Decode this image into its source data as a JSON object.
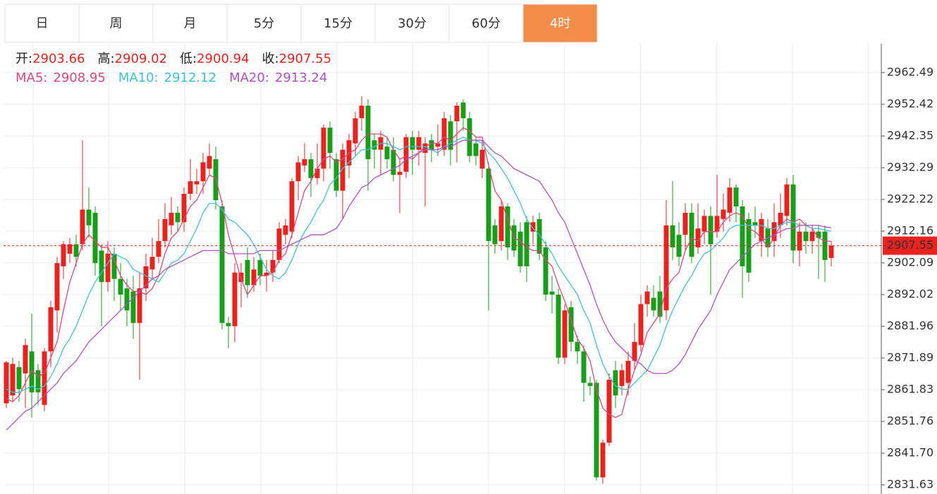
{
  "tabs": [
    "日",
    "周",
    "月",
    "5分",
    "15分",
    "30分",
    "60分",
    "4时"
  ],
  "active_tab": 7,
  "chart_data": {
    "type": "candlestick",
    "ohlc_labels": [
      "开:",
      "高:",
      "低:",
      "收:"
    ],
    "up_color": "#e8221e",
    "down_color": "#1a9e1a",
    "grid": true,
    "ylim": [
      2828.72,
      2971.66
    ],
    "yticks": [
      {
        "value": 2831.63,
        "label": "2831.63"
      },
      {
        "value": 2841.7,
        "label": "2841.70"
      },
      {
        "value": 2851.76,
        "label": "2851.76"
      },
      {
        "value": 2861.83,
        "label": "2861.83"
      },
      {
        "value": 2871.89,
        "label": "2871.89"
      },
      {
        "value": 2881.96,
        "label": "2881.96"
      },
      {
        "value": 2892.02,
        "label": "2892.02"
      },
      {
        "value": 2902.09,
        "label": "2902.09"
      },
      {
        "value": 2912.16,
        "label": "2912.16"
      },
      {
        "value": 2922.22,
        "label": "2922.22"
      },
      {
        "value": 2932.29,
        "label": "2932.29"
      },
      {
        "value": 2942.35,
        "label": "2942.35"
      },
      {
        "value": 2952.42,
        "label": "2952.42"
      },
      {
        "value": 2962.49,
        "label": "2962.49"
      }
    ],
    "candles": [
      [
        2857.5,
        2871,
        2856,
        2870.5
      ],
      [
        2860,
        2872,
        2858,
        2870
      ],
      [
        2869,
        2871,
        2858,
        2862
      ],
      [
        2867,
        2878,
        2856,
        2876
      ],
      [
        2874,
        2886,
        2853,
        2861
      ],
      [
        2868,
        2870,
        2857,
        2861
      ],
      [
        2857,
        2875,
        2855,
        2874
      ],
      [
        2874,
        2890,
        2869,
        2888
      ],
      [
        2887,
        2904,
        2880,
        2902
      ],
      [
        2901,
        2909,
        2897,
        2908
      ],
      [
        2905,
        2910,
        2902,
        2908
      ],
      [
        2908,
        2911,
        2901,
        2904
      ],
      [
        2908,
        2941,
        2906,
        2919
      ],
      [
        2919,
        2926,
        2910,
        2914
      ],
      [
        2918,
        2920,
        2898,
        2902
      ],
      [
        2906,
        2908,
        2882,
        2896
      ],
      [
        2896,
        2909,
        2893,
        2905
      ],
      [
        2905,
        2907,
        2890,
        2897
      ],
      [
        2897,
        2902,
        2887,
        2892
      ],
      [
        2894,
        2897,
        2882,
        2887
      ],
      [
        2893,
        2898,
        2878,
        2883
      ],
      [
        2883,
        2899,
        2865,
        2894
      ],
      [
        2894,
        2905,
        2890,
        2901
      ],
      [
        2900,
        2910,
        2897,
        2904
      ],
      [
        2904,
        2916,
        2902,
        2909
      ],
      [
        2909,
        2921,
        2907,
        2916
      ],
      [
        2914,
        2923,
        2911,
        2918
      ],
      [
        2918,
        2920,
        2912,
        2915
      ],
      [
        2915,
        2926,
        2912,
        2924
      ],
      [
        2924,
        2935,
        2922,
        2928
      ],
      [
        2927,
        2932,
        2924,
        2928
      ],
      [
        2928,
        2937,
        2924,
        2934
      ],
      [
        2932,
        2940,
        2930,
        2936
      ],
      [
        2935,
        2939,
        2919,
        2922
      ],
      [
        2920,
        2922,
        2881,
        2883
      ],
      [
        2883,
        2885,
        2875,
        2882
      ],
      [
        2882,
        2902,
        2877,
        2899
      ],
      [
        2896,
        2902,
        2888,
        2899
      ],
      [
        2903,
        2907,
        2891,
        2895
      ],
      [
        2895,
        2904,
        2893,
        2900
      ],
      [
        2903,
        2905,
        2895,
        2898
      ],
      [
        2898,
        2903,
        2893,
        2899
      ],
      [
        2899,
        2906,
        2896,
        2903
      ],
      [
        2903,
        2915,
        2902,
        2913
      ],
      [
        2911,
        2916,
        2908,
        2914
      ],
      [
        2912,
        2929,
        2910,
        2928
      ],
      [
        2928,
        2936,
        2922,
        2934
      ],
      [
        2933,
        2940,
        2931,
        2935
      ],
      [
        2935,
        2937,
        2923,
        2929
      ],
      [
        2929,
        2940,
        2927,
        2932
      ],
      [
        2932,
        2946,
        2928,
        2945
      ],
      [
        2945,
        2947,
        2932,
        2937
      ],
      [
        2935,
        2937,
        2923,
        2925
      ],
      [
        2925,
        2940,
        2916,
        2938
      ],
      [
        2933,
        2943,
        2929,
        2941
      ],
      [
        2940,
        2950,
        2936,
        2948
      ],
      [
        2948,
        2955,
        2944,
        2952
      ],
      [
        2952,
        2954,
        2925,
        2935
      ],
      [
        2941,
        2943,
        2932,
        2938
      ],
      [
        2938,
        2944,
        2930,
        2942
      ],
      [
        2939,
        2942,
        2932,
        2935
      ],
      [
        2938,
        2942,
        2928,
        2930
      ],
      [
        2930,
        2935,
        2918,
        2931
      ],
      [
        2931,
        2943,
        2929,
        2942
      ],
      [
        2942,
        2944,
        2930,
        2938
      ],
      [
        2938,
        2944,
        2933,
        2942
      ],
      [
        2937,
        2942,
        2920,
        2940
      ],
      [
        2941,
        2943,
        2934,
        2938
      ],
      [
        2939,
        2946,
        2936,
        2940
      ],
      [
        2938,
        2950,
        2936,
        2948
      ],
      [
        2947,
        2949,
        2933,
        2938
      ],
      [
        2947,
        2953,
        2934,
        2952
      ],
      [
        2953,
        2954,
        2944,
        2948
      ],
      [
        2948,
        2950,
        2934,
        2936
      ],
      [
        2940,
        2942,
        2933,
        2936
      ],
      [
        2932,
        2941,
        2929,
        2938
      ],
      [
        2932,
        2934,
        2887,
        2909
      ],
      [
        2914,
        2916,
        2905,
        2908
      ],
      [
        2909,
        2922,
        2906,
        2920
      ],
      [
        2920,
        2921,
        2903,
        2907
      ],
      [
        2914,
        2916,
        2904,
        2906
      ],
      [
        2912,
        2915,
        2899,
        2901
      ],
      [
        2915,
        2917,
        2896,
        2901
      ],
      [
        2912,
        2917,
        2908,
        2915
      ],
      [
        2916,
        2918,
        2903,
        2905
      ],
      [
        2907,
        2909,
        2890,
        2892
      ],
      [
        2893,
        2898,
        2886,
        2892
      ],
      [
        2892,
        2894,
        2870,
        2872
      ],
      [
        2872,
        2889,
        2870,
        2887
      ],
      [
        2888,
        2890,
        2874,
        2877
      ],
      [
        2877,
        2879,
        2870,
        2874
      ],
      [
        2874,
        2876,
        2858,
        2864
      ],
      [
        2864,
        2866,
        2860,
        2863
      ],
      [
        2864,
        2865,
        2833,
        2834
      ],
      [
        2834,
        2846,
        2832,
        2845
      ],
      [
        2845,
        2867,
        2844,
        2865
      ],
      [
        2868,
        2871,
        2856,
        2860
      ],
      [
        2863,
        2870,
        2860,
        2868
      ],
      [
        2864,
        2874,
        2860,
        2871
      ],
      [
        2871,
        2883,
        2868,
        2877
      ],
      [
        2876,
        2892,
        2874,
        2889
      ],
      [
        2889,
        2895,
        2885,
        2893
      ],
      [
        2891,
        2895,
        2885,
        2887
      ],
      [
        2893,
        2898,
        2883,
        2885
      ],
      [
        2887,
        2922,
        2884,
        2914
      ],
      [
        2914,
        2928,
        2903,
        2907
      ],
      [
        2911,
        2915,
        2901,
        2904
      ],
      [
        2911,
        2921,
        2906,
        2918
      ],
      [
        2918,
        2921,
        2902,
        2904
      ],
      [
        2907,
        2921,
        2905,
        2913
      ],
      [
        2912,
        2919,
        2908,
        2917
      ],
      [
        2917,
        2920,
        2892,
        2908
      ],
      [
        2912,
        2930,
        2910,
        2917
      ],
      [
        2916,
        2924,
        2912,
        2919
      ],
      [
        2918,
        2929,
        2915,
        2926
      ],
      [
        2926,
        2927,
        2915,
        2920
      ],
      [
        2920,
        2922,
        2891,
        2901
      ],
      [
        2916,
        2918,
        2896,
        2899
      ],
      [
        2915,
        2920,
        2910,
        2914
      ],
      [
        2909,
        2918,
        2904,
        2916
      ],
      [
        2913,
        2916,
        2904,
        2907
      ],
      [
        2909,
        2921,
        2904,
        2915
      ],
      [
        2914,
        2924,
        2910,
        2918
      ],
      [
        2917,
        2929,
        2914,
        2927
      ],
      [
        2927,
        2930,
        2902,
        2906
      ],
      [
        2906,
        2915,
        2901,
        2912
      ],
      [
        2912,
        2915,
        2905,
        2909
      ],
      [
        2909,
        2914,
        2905,
        2912
      ],
      [
        2912,
        2914,
        2897,
        2910
      ],
      [
        2912,
        2914,
        2896,
        2903
      ],
      [
        2903.66,
        2909.02,
        2900.94,
        2907.55
      ]
    ],
    "series": [
      {
        "name": "MA5:",
        "color": "#e0457f",
        "values": [
          2859,
          2858,
          2860,
          2864,
          2868,
          2866,
          2867,
          2872,
          2877,
          2887,
          2896,
          2902,
          2908,
          2911,
          2909,
          2907,
          2907,
          2903,
          2898,
          2895,
          2893,
          2893,
          2892,
          2894,
          2898,
          2905,
          2910,
          2912,
          2916,
          2920,
          2922,
          2926,
          2930,
          2929,
          2921,
          2911,
          2904,
          2897,
          2892,
          2895,
          2898,
          2898,
          2899,
          2903,
          2905,
          2911,
          2918,
          2925,
          2928,
          2932,
          2935,
          2936,
          2934,
          2935,
          2937,
          2938,
          2941,
          2943,
          2943,
          2943,
          2942,
          2938,
          2935,
          2936,
          2935,
          2937,
          2939,
          2940,
          2940,
          2942,
          2941,
          2943,
          2945,
          2944,
          2942,
          2942,
          2933,
          2925,
          2922,
          2916,
          2910,
          2909,
          2907,
          2906,
          2906,
          2903,
          2901,
          2895,
          2890,
          2884,
          2878,
          2875,
          2871,
          2862,
          2856,
          2854,
          2853,
          2854,
          2862,
          2868,
          2873,
          2880,
          2883,
          2886,
          2894,
          2897,
          2899,
          2906,
          2910,
          2909,
          2912,
          2912,
          2912,
          2915,
          2917,
          2918,
          2917,
          2913,
          2912,
          2910,
          2907,
          2910,
          2914,
          2916,
          2915,
          2916,
          2914,
          2913,
          2910,
          2909,
          2908.95
        ]
      },
      {
        "name": "MA10:",
        "color": "#3cc3cf",
        "values": [
          2862,
          2861,
          2861,
          2862,
          2863,
          2862,
          2863,
          2866,
          2870,
          2875,
          2878,
          2882,
          2887,
          2892,
          2896,
          2899,
          2902,
          2905,
          2904,
          2903,
          2900,
          2899,
          2898,
          2897,
          2896,
          2899,
          2902,
          2903,
          2905,
          2909,
          2913,
          2918,
          2921,
          2921,
          2919,
          2916,
          2915,
          2913,
          2911,
          2908,
          2904,
          2900,
          2898,
          2897,
          2899,
          2903,
          2908,
          2912,
          2915,
          2919,
          2922,
          2927,
          2929,
          2932,
          2934,
          2936,
          2938,
          2938,
          2939,
          2940,
          2940,
          2939,
          2938,
          2939,
          2939,
          2939,
          2939,
          2938,
          2937,
          2939,
          2940,
          2941,
          2942,
          2941,
          2941,
          2940,
          2937,
          2935,
          2932,
          2929,
          2925,
          2921,
          2916,
          2913,
          2911,
          2908,
          2905,
          2901,
          2898,
          2895,
          2892,
          2887,
          2883,
          2876,
          2870,
          2866,
          2863,
          2862,
          2862,
          2864,
          2866,
          2868,
          2872,
          2876,
          2882,
          2887,
          2891,
          2895,
          2898,
          2902,
          2905,
          2906,
          2908,
          2910,
          2913,
          2914,
          2914,
          2914,
          2914,
          2914,
          2913,
          2913,
          2914,
          2915,
          2915,
          2914,
          2914,
          2913,
          2913,
          2912.5,
          2912.12
        ]
      },
      {
        "name": "MA20:",
        "color": "#b14fc6",
        "values": [
          2849,
          2851,
          2853,
          2855,
          2856,
          2858,
          2860,
          2862,
          2864,
          2867,
          2869,
          2871,
          2874,
          2877,
          2879,
          2881,
          2883,
          2885,
          2887,
          2889,
          2891,
          2893,
          2895,
          2897,
          2898,
          2900,
          2901,
          2902,
          2903,
          2904,
          2905,
          2906,
          2906,
          2906,
          2906,
          2905,
          2905,
          2905,
          2905,
          2905,
          2906,
          2906,
          2906,
          2906,
          2907,
          2908,
          2909,
          2910,
          2911,
          2911,
          2911,
          2912,
          2913,
          2916,
          2920,
          2923,
          2926,
          2927,
          2929,
          2930,
          2931,
          2932,
          2933,
          2935,
          2936,
          2937,
          2938,
          2938,
          2938,
          2939,
          2939,
          2940,
          2941,
          2941,
          2941,
          2941,
          2939,
          2937,
          2936,
          2934,
          2932,
          2931,
          2930,
          2929,
          2928,
          2925,
          2922,
          2918,
          2915,
          2910,
          2905,
          2900,
          2895,
          2889,
          2884,
          2880,
          2877,
          2875,
          2873,
          2871,
          2870,
          2868,
          2867,
          2867,
          2867,
          2868,
          2870,
          2873,
          2877,
          2881,
          2884,
          2887,
          2892,
          2896,
          2900,
          2902,
          2904,
          2906,
          2908,
          2909,
          2910,
          2911,
          2912,
          2913,
          2913,
          2914,
          2914,
          2914,
          2914,
          2913.5,
          2913.24
        ]
      }
    ]
  }
}
